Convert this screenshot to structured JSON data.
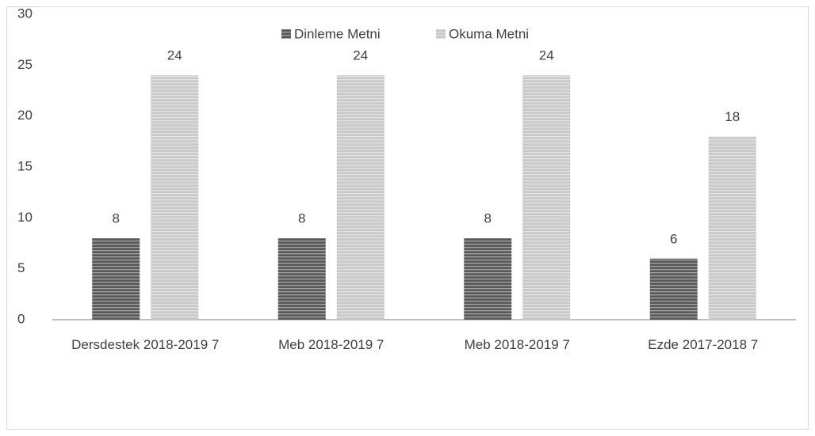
{
  "chart_data": {
    "type": "bar",
    "categories": [
      "Dersdestek 2018-2019 7",
      "Meb 2018-2019 7",
      "Meb 2018-2019 7",
      "Ezde 2017-2018 7"
    ],
    "series": [
      {
        "name": "Dinleme Metni",
        "color": "#595959",
        "values": [
          8,
          8,
          8,
          6
        ]
      },
      {
        "name": "Okuma Metni",
        "color": "#c8c8c8",
        "values": [
          24,
          24,
          24,
          18
        ]
      }
    ],
    "ylim": [
      0,
      30
    ],
    "yticks": [
      0,
      5,
      10,
      15,
      20,
      25,
      30
    ],
    "grid": false,
    "legend": "top"
  }
}
